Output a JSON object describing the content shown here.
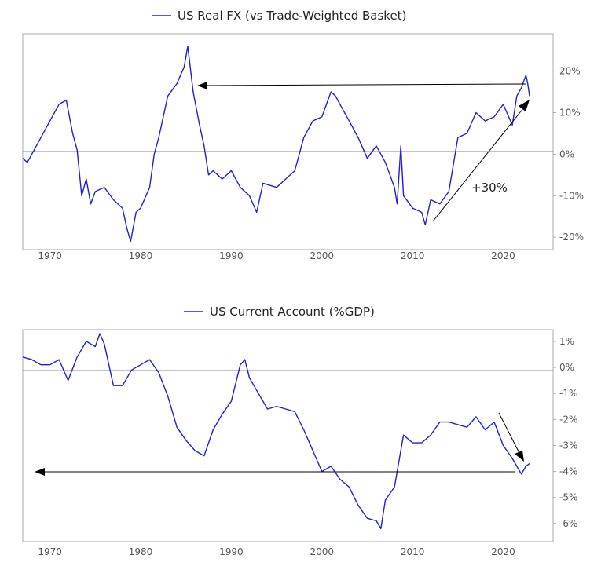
{
  "colors": {
    "series": "#1f1fd6",
    "axis": "#aaaaaa",
    "zero_line": "#888888",
    "arrow": "#000000"
  },
  "chart_data": [
    {
      "type": "line",
      "legend": "US Real FX (vs Trade-Weighted Basket)",
      "legend_position": "top-center",
      "x_ticks": [
        "1970",
        "1980",
        "1990",
        "2000",
        "2010",
        "2020"
      ],
      "y_ticks": [
        "20%",
        "10%",
        "0%",
        "-10%",
        "-20%"
      ],
      "xlim": [
        1967,
        2025.5
      ],
      "ylim": [
        -23,
        29
      ],
      "reference_line": 0,
      "annotation": "+30%",
      "series": [
        {
          "name": "US Real FX (vs Trade-Weighted Basket)",
          "x": [
            1967,
            1967.5,
            1968,
            1969,
            1970,
            1971,
            1971.8,
            1972.5,
            1973,
            1973.5,
            1974,
            1974.5,
            1975,
            1976,
            1977,
            1978,
            1978.5,
            1978.9,
            1979.5,
            1980,
            1981,
            1981.5,
            1982,
            1983,
            1984,
            1984.8,
            1985.2,
            1985.8,
            1986.5,
            1987,
            1987.5,
            1988,
            1989,
            1990,
            1991,
            1992,
            1992.8,
            1993.5,
            1995,
            1996,
            1997,
            1998,
            1999,
            2000,
            2001,
            2001.5,
            2002,
            2003,
            2004,
            2005,
            2006,
            2007,
            2008,
            2008.3,
            2008.7,
            2009,
            2010,
            2011,
            2011.4,
            2012,
            2013,
            2014,
            2015,
            2016,
            2017,
            2018,
            2019,
            2020,
            2021,
            2021.5,
            2022,
            2022.5,
            2022.7,
            2022.9
          ],
          "values": [
            -1,
            -2,
            0,
            4,
            8,
            12,
            13,
            5,
            1,
            -10,
            -6,
            -12,
            -9,
            -8,
            -11,
            -13,
            -18,
            -21,
            -14,
            -13,
            -8,
            0,
            4,
            14,
            17,
            21,
            26,
            15,
            7,
            2,
            -5,
            -4,
            -6,
            -4,
            -8,
            -10,
            -14,
            -7,
            -8,
            -6,
            -4,
            4,
            8,
            9,
            15,
            14,
            12,
            8,
            4,
            -1,
            2,
            -2,
            -8,
            -12,
            2,
            -10,
            -13,
            -14,
            -17,
            -11,
            -12,
            -9,
            4,
            5,
            10,
            8,
            9,
            12,
            7,
            14,
            16,
            19,
            17,
            14
          ]
        }
      ]
    },
    {
      "type": "line",
      "legend": "US Current Account (%GDP)",
      "legend_position": "top-center",
      "x_ticks": [
        "1970",
        "1980",
        "1990",
        "2000",
        "2010",
        "2020"
      ],
      "y_ticks": [
        "1%",
        "0%",
        "-1%",
        "-2%",
        "-3%",
        "-4%",
        "-5%",
        "-6%"
      ],
      "xlim": [
        1967,
        2025.5
      ],
      "ylim": [
        -6.7,
        1.45
      ],
      "reference_line": 0,
      "series": [
        {
          "name": "US Current Account (%GDP)",
          "x": [
            1967,
            1968,
            1969,
            1970,
            1971,
            1972,
            1973,
            1974,
            1975,
            1975.5,
            1976,
            1977,
            1978,
            1979,
            1980,
            1981,
            1982,
            1983,
            1984,
            1985,
            1986,
            1987,
            1988,
            1989,
            1990,
            1991,
            1991.5,
            1992,
            1993,
            1994,
            1995,
            1996,
            1997,
            1998,
            1999,
            2000,
            2001,
            2002,
            2003,
            2004,
            2005,
            2006,
            2006.5,
            2007,
            2008,
            2009,
            2010,
            2011,
            2012,
            2013,
            2014,
            2015,
            2016,
            2017,
            2018,
            2019,
            2020,
            2021,
            2022,
            2022.5,
            2022.9
          ],
          "values": [
            0.4,
            0.3,
            0.1,
            0.1,
            0.3,
            -0.5,
            0.4,
            1.0,
            0.8,
            1.3,
            0.9,
            -0.7,
            -0.7,
            -0.1,
            0.1,
            0.3,
            -0.2,
            -1.1,
            -2.3,
            -2.8,
            -3.2,
            -3.4,
            -2.4,
            -1.8,
            -1.3,
            0.1,
            0.3,
            -0.4,
            -1.0,
            -1.6,
            -1.5,
            -1.6,
            -1.7,
            -2.4,
            -3.2,
            -4.0,
            -3.8,
            -4.3,
            -4.6,
            -5.3,
            -5.8,
            -5.9,
            -6.2,
            -5.1,
            -4.6,
            -2.6,
            -2.9,
            -2.9,
            -2.6,
            -2.1,
            -2.1,
            -2.2,
            -2.3,
            -1.9,
            -2.4,
            -2.1,
            -3.0,
            -3.5,
            -4.1,
            -3.8,
            -3.7
          ]
        }
      ]
    }
  ]
}
